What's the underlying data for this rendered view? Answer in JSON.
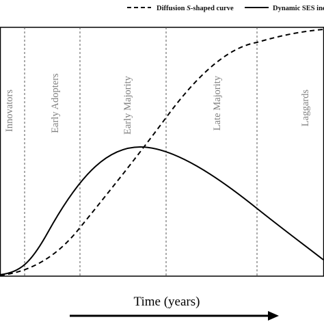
{
  "legend": {
    "diffusion_label_prefix": "Diffusion ",
    "diffusion_label_italic": "S",
    "diffusion_label_suffix": "-shaped curve",
    "inequality_label": "Dynamic SES inequality"
  },
  "phases": [
    "Innovators",
    "Early Adopters",
    "Early Majority",
    "Late Majority",
    "Laggards"
  ],
  "x_axis_label": "Time (years)",
  "colors": {
    "curve": "#000000",
    "phase_text": "#808080",
    "divider": "#555555"
  }
}
